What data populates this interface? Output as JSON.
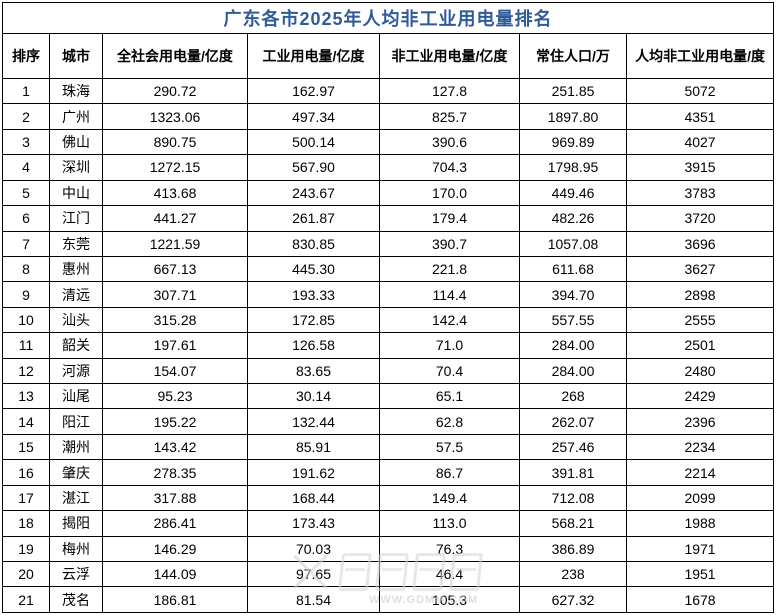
{
  "title": "广东各市2025年人均非工业用电量排名",
  "colors": {
    "title_text": "#2F5B9B",
    "grid_border": "#000000",
    "cell_text": "#000000",
    "watermark": "#C8C8C8",
    "background": "#FFFFFF"
  },
  "watermark": {
    "text": "WWW.GDMM.COM"
  },
  "chart_data": {
    "type": "table",
    "title": "广东各市2025年人均非工业用电量排名",
    "columns": [
      "排序",
      "城市",
      "全社会用电量/亿度",
      "工业用电量/亿度",
      "非工业用电量/亿度",
      "常住人口/万",
      "人均非工业用电量/度"
    ],
    "rows": [
      [
        "1",
        "珠海",
        "290.72",
        "162.97",
        "127.8",
        "251.85",
        "5072"
      ],
      [
        "2",
        "广州",
        "1323.06",
        "497.34",
        "825.7",
        "1897.80",
        "4351"
      ],
      [
        "3",
        "佛山",
        "890.75",
        "500.14",
        "390.6",
        "969.89",
        "4027"
      ],
      [
        "4",
        "深圳",
        "1272.15",
        "567.90",
        "704.3",
        "1798.95",
        "3915"
      ],
      [
        "5",
        "中山",
        "413.68",
        "243.67",
        "170.0",
        "449.46",
        "3783"
      ],
      [
        "6",
        "江门",
        "441.27",
        "261.87",
        "179.4",
        "482.26",
        "3720"
      ],
      [
        "7",
        "东莞",
        "1221.59",
        "830.85",
        "390.7",
        "1057.08",
        "3696"
      ],
      [
        "8",
        "惠州",
        "667.13",
        "445.30",
        "221.8",
        "611.68",
        "3627"
      ],
      [
        "9",
        "清远",
        "307.71",
        "193.33",
        "114.4",
        "394.70",
        "2898"
      ],
      [
        "10",
        "汕头",
        "315.28",
        "172.85",
        "142.4",
        "557.55",
        "2555"
      ],
      [
        "11",
        "韶关",
        "197.61",
        "126.58",
        "71.0",
        "284.00",
        "2501"
      ],
      [
        "12",
        "河源",
        "154.07",
        "83.65",
        "70.4",
        "284.00",
        "2480"
      ],
      [
        "13",
        "汕尾",
        "95.23",
        "30.14",
        "65.1",
        "268",
        "2429"
      ],
      [
        "14",
        "阳江",
        "195.22",
        "132.44",
        "62.8",
        "262.07",
        "2396"
      ],
      [
        "15",
        "潮州",
        "143.42",
        "85.91",
        "57.5",
        "257.46",
        "2234"
      ],
      [
        "16",
        "肇庆",
        "278.35",
        "191.62",
        "86.7",
        "391.81",
        "2214"
      ],
      [
        "17",
        "湛江",
        "317.88",
        "168.44",
        "149.4",
        "712.08",
        "2099"
      ],
      [
        "18",
        "揭阳",
        "286.41",
        "173.43",
        "113.0",
        "568.21",
        "1988"
      ],
      [
        "19",
        "梅州",
        "146.29",
        "70.03",
        "76.3",
        "386.89",
        "1971"
      ],
      [
        "20",
        "云浮",
        "144.09",
        "97.65",
        "46.4",
        "238",
        "1951"
      ],
      [
        "21",
        "茂名",
        "186.81",
        "81.54",
        "105.3",
        "627.32",
        "1678"
      ]
    ]
  }
}
